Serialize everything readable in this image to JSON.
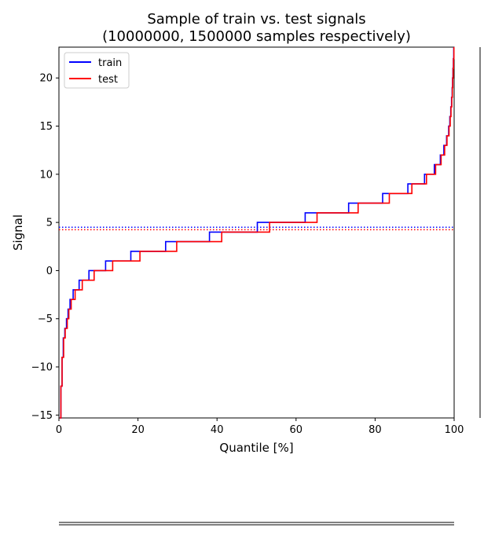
{
  "chart_data": {
    "type": "line",
    "title": "Sample of train vs. test signals",
    "subtitle": "(10000000, 1500000 samples respectively)",
    "xlabel": "Quantile [%]",
    "ylabel": "Signal",
    "xlim": [
      0,
      100
    ],
    "ylim": [
      -15.3,
      23.2
    ],
    "x_ticks": [
      0,
      20,
      40,
      60,
      80,
      100
    ],
    "y_ticks": [
      -15,
      -10,
      -5,
      0,
      5,
      10,
      15,
      20
    ],
    "grid": false,
    "legend_position": "top-left",
    "series": [
      {
        "name": "train",
        "color": "#0000ff",
        "mean": 4.5,
        "points": [
          [
            0.2,
            -15.3
          ],
          [
            0.5,
            -12
          ],
          [
            0.8,
            -9
          ],
          [
            1.1,
            -7
          ],
          [
            1.5,
            -6
          ],
          [
            1.9,
            -5
          ],
          [
            2.3,
            -4
          ],
          [
            2.8,
            -3
          ],
          [
            3.6,
            -2
          ],
          [
            5.1,
            -1
          ],
          [
            7.6,
            0
          ],
          [
            11.8,
            1
          ],
          [
            18.2,
            2
          ],
          [
            27.0,
            3
          ],
          [
            38.1,
            4
          ],
          [
            50.2,
            5
          ],
          [
            62.3,
            6
          ],
          [
            73.3,
            7
          ],
          [
            81.9,
            8
          ],
          [
            88.3,
            9
          ],
          [
            92.5,
            10
          ],
          [
            95.0,
            11
          ],
          [
            96.5,
            12
          ],
          [
            97.4,
            13
          ],
          [
            98.1,
            14
          ],
          [
            98.6,
            15
          ],
          [
            98.9,
            16
          ],
          [
            99.15,
            17
          ],
          [
            99.35,
            18
          ],
          [
            99.5,
            19
          ],
          [
            99.6,
            20
          ],
          [
            99.7,
            21
          ],
          [
            99.8,
            22
          ],
          [
            99.9,
            23.2
          ]
        ]
      },
      {
        "name": "test",
        "color": "#ff0000",
        "mean": 4.25,
        "points": [
          [
            0.2,
            -15.3
          ],
          [
            0.5,
            -12
          ],
          [
            0.8,
            -9
          ],
          [
            1.2,
            -7
          ],
          [
            1.6,
            -6
          ],
          [
            2.1,
            -5
          ],
          [
            2.5,
            -4
          ],
          [
            3.1,
            -3
          ],
          [
            4.1,
            -2
          ],
          [
            5.9,
            -1
          ],
          [
            8.9,
            0
          ],
          [
            13.6,
            1
          ],
          [
            20.5,
            2
          ],
          [
            29.8,
            3
          ],
          [
            41.2,
            4
          ],
          [
            53.3,
            5
          ],
          [
            65.3,
            6
          ],
          [
            75.7,
            7
          ],
          [
            83.6,
            8
          ],
          [
            89.3,
            9
          ],
          [
            93.0,
            10
          ],
          [
            95.3,
            11
          ],
          [
            96.7,
            12
          ],
          [
            97.6,
            13
          ],
          [
            98.2,
            14
          ],
          [
            98.7,
            15
          ],
          [
            99.0,
            16
          ],
          [
            99.2,
            17
          ],
          [
            99.4,
            18
          ],
          [
            99.55,
            19
          ],
          [
            99.65,
            20
          ],
          [
            99.75,
            21
          ],
          [
            99.85,
            22
          ],
          [
            99.95,
            23.2
          ]
        ]
      }
    ]
  }
}
